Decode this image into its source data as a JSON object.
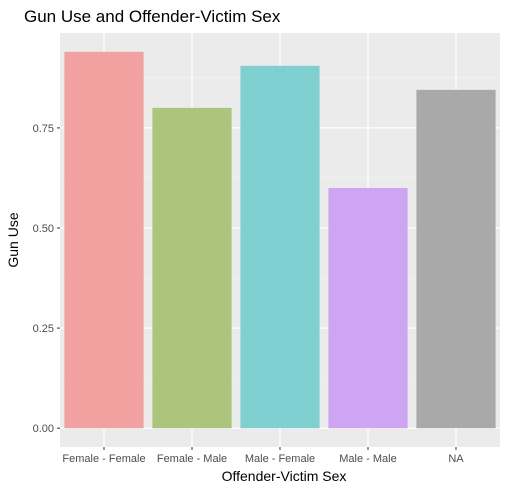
{
  "chart_data": {
    "type": "bar",
    "title": "Gun Use and Offender-Victim Sex",
    "xlabel": "Offender-Victim Sex",
    "ylabel": "Gun Use",
    "categories": [
      "Female - Female",
      "Female - Male",
      "Male - Female",
      "Male - Male",
      "NA"
    ],
    "values": [
      0.94,
      0.8,
      0.905,
      0.6,
      0.845
    ],
    "colors": [
      "#f1a1a0",
      "#abc57b",
      "#80d0d2",
      "#cda5f2",
      "#a9a9a9"
    ],
    "yticks": [
      "0.00",
      "0.25",
      "0.50",
      "0.75"
    ],
    "ytick_values": [
      0,
      0.25,
      0.5,
      0.75
    ],
    "ylim": [
      -0.047,
      0.987
    ],
    "grid": true,
    "panel_background": "#ebebeb",
    "legend": "none"
  }
}
